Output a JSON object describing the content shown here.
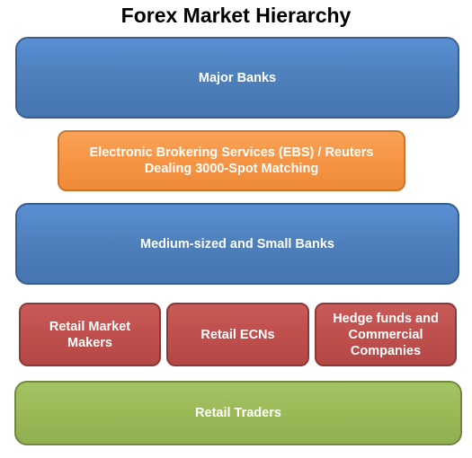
{
  "title": "Forex Market Hierarchy",
  "levels": {
    "major_banks": "Major Banks",
    "ebs": {
      "line1": "Electronic Brokering Services (EBS) / Reuters",
      "line2": "Dealing 3000-Spot Matching"
    },
    "medium_small_banks": "Medium-sized and Small Banks",
    "retail_market_makers": {
      "line1": "Retail Market",
      "line2": "Makers"
    },
    "retail_ecns": "Retail ECNs",
    "hedge_funds": {
      "line1": "Hedge funds and",
      "line2": "Commercial",
      "line3": "Companies"
    },
    "retail_traders": "Retail Traders"
  },
  "colors": {
    "blue": "#4f81bd",
    "orange": "#f79646",
    "red": "#c0504d",
    "green": "#9bbb59"
  }
}
